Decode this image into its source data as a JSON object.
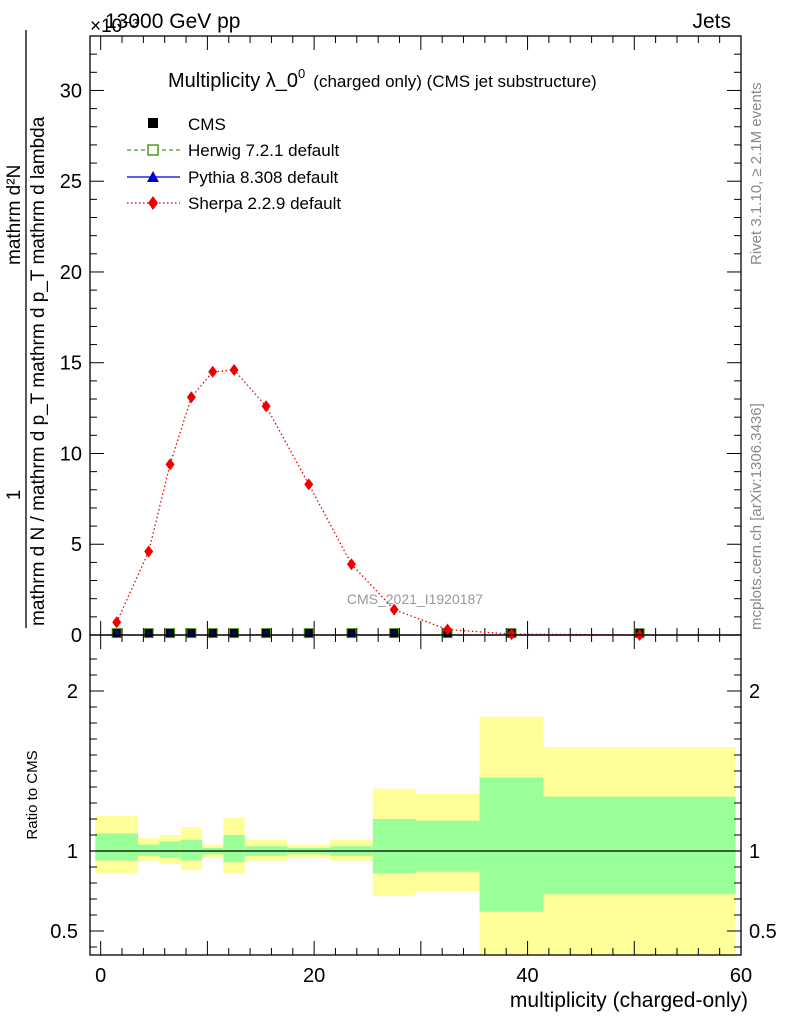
{
  "header": {
    "left": "13000 GeV pp",
    "right": "Jets",
    "exponent": "×10⁻³"
  },
  "side_labels": {
    "rivet": "Rivet 3.1.10, ≥ 2.1M events",
    "mcplots": "mcplots.cern.ch [arXiv:1306.3436]"
  },
  "watermark": "CMS_2021_I1920187",
  "chart_data": [
    {
      "type": "line",
      "title_main": "Multiplicity λ_0",
      "title_sup": "0",
      "title_sub": "(charged only) (CMS jet substructure)",
      "ylabel_numerator": "1",
      "ylabel_denominator": "mathrm d N / mathrm d p_T mathrm d p_T mathrm d lambda",
      "ylabel_alt": "mathrm d²N",
      "xlim": [
        -1,
        60
      ],
      "ylim": [
        0,
        33
      ],
      "y_scale_note": "×10⁻³",
      "yticks": [
        0,
        5,
        10,
        15,
        20,
        25,
        30
      ],
      "legend": [
        {
          "name": "CMS",
          "marker": "square",
          "color": "#000000"
        },
        {
          "name": "Herwig 7.2.1 default",
          "marker": "open-square",
          "color": "#4c9a1f",
          "dash": "dashed"
        },
        {
          "name": "Pythia 8.308 default",
          "marker": "triangle",
          "color": "#0000cc",
          "dash": "solid"
        },
        {
          "name": "Sherpa 2.2.9 default",
          "marker": "diamond",
          "color": "#ee0000",
          "dash": "dotted"
        }
      ],
      "legend_position": "top-left",
      "series": [
        {
          "name": "Sherpa 2.2.9 default",
          "x": [
            1.5,
            4.5,
            6.5,
            8.5,
            10.5,
            12.5,
            15.5,
            19.5,
            23.5,
            27.5,
            32.5,
            38.5,
            50.5
          ],
          "y": [
            0.7,
            4.6,
            9.4,
            13.1,
            14.5,
            14.6,
            12.6,
            8.3,
            3.9,
            1.4,
            0.3,
            0.05,
            0.0
          ]
        },
        {
          "name": "CMS",
          "x": [
            1.5,
            4.5,
            6.5,
            8.5,
            10.5,
            12.5,
            15.5,
            19.5,
            23.5,
            27.5,
            32.5,
            38.5,
            50.5
          ],
          "y": [
            0.05,
            0.05,
            0.05,
            0.05,
            0.05,
            0.05,
            0.05,
            0.05,
            0.05,
            0.05,
            0.05,
            0.05,
            0.05
          ]
        }
      ]
    },
    {
      "type": "area",
      "ylabel": "Ratio to CMS",
      "xlabel": "multiplicity (charged-only)",
      "xlim": [
        -1,
        60
      ],
      "ylim": [
        0.35,
        2.35
      ],
      "xticks": [
        0,
        20,
        40,
        60
      ],
      "yticks": [
        0.5,
        1,
        2
      ],
      "reference_line": 1,
      "bins": [
        {
          "x0": -0.5,
          "x1": 3.5,
          "inner": [
            0.94,
            1.11
          ],
          "outer": [
            0.86,
            1.22
          ]
        },
        {
          "x0": 3.5,
          "x1": 5.5,
          "inner": [
            0.97,
            1.04
          ],
          "outer": [
            0.94,
            1.08
          ]
        },
        {
          "x0": 5.5,
          "x1": 7.5,
          "inner": [
            0.96,
            1.06
          ],
          "outer": [
            0.92,
            1.1
          ]
        },
        {
          "x0": 7.5,
          "x1": 9.5,
          "inner": [
            0.94,
            1.07
          ],
          "outer": [
            0.88,
            1.15
          ]
        },
        {
          "x0": 9.5,
          "x1": 11.5,
          "inner": [
            0.98,
            1.02
          ],
          "outer": [
            0.96,
            1.04
          ]
        },
        {
          "x0": 11.5,
          "x1": 13.5,
          "inner": [
            0.93,
            1.1
          ],
          "outer": [
            0.86,
            1.21
          ]
        },
        {
          "x0": 13.5,
          "x1": 17.5,
          "inner": [
            0.97,
            1.03
          ],
          "outer": [
            0.94,
            1.07
          ]
        },
        {
          "x0": 17.5,
          "x1": 21.5,
          "inner": [
            0.98,
            1.02
          ],
          "outer": [
            0.96,
            1.04
          ]
        },
        {
          "x0": 21.5,
          "x1": 25.5,
          "inner": [
            0.97,
            1.03
          ],
          "outer": [
            0.94,
            1.07
          ]
        },
        {
          "x0": 25.5,
          "x1": 29.5,
          "inner": [
            0.86,
            1.2
          ],
          "outer": [
            0.72,
            1.39
          ]
        },
        {
          "x0": 29.5,
          "x1": 35.5,
          "inner": [
            0.87,
            1.19
          ],
          "outer": [
            0.75,
            1.36
          ]
        },
        {
          "x0": 35.5,
          "x1": 41.5,
          "inner": [
            0.62,
            1.46
          ],
          "outer": [
            0.35,
            1.84
          ]
        },
        {
          "x0": 41.5,
          "x1": 59.5,
          "inner": [
            0.73,
            1.34
          ],
          "outer": [
            0.35,
            1.65
          ]
        }
      ],
      "band_colors": {
        "inner": "#99ff99",
        "outer": "#ffff99"
      }
    }
  ]
}
